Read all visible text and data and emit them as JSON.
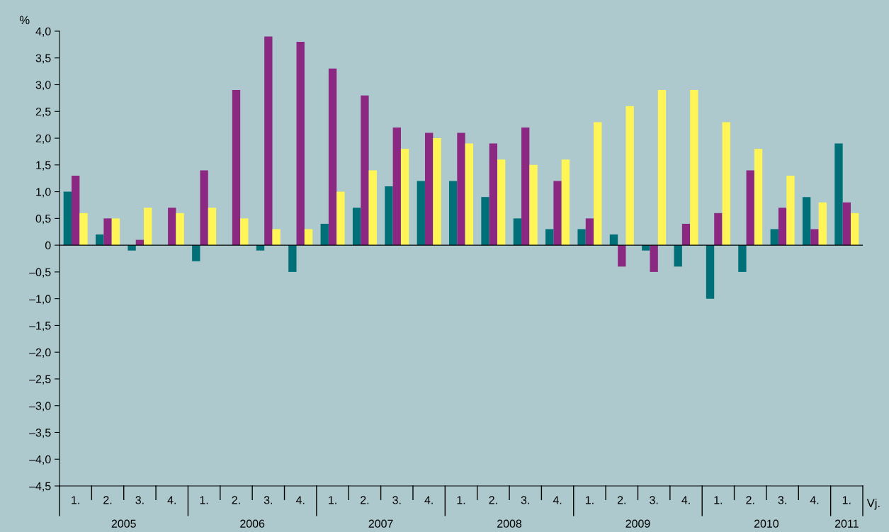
{
  "chart_data": {
    "type": "bar",
    "ylabel": "%",
    "xlabel": "Vj.",
    "categories": [
      "1.",
      "2.",
      "3.",
      "4.",
      "1.",
      "2.",
      "3.",
      "4.",
      "1.",
      "2.",
      "3.",
      "4.",
      "1.",
      "2.",
      "3.",
      "4.",
      "1.",
      "2.",
      "3.",
      "4.",
      "1.",
      "2.",
      "3.",
      "4.",
      "1."
    ],
    "series": [
      {
        "color": "#007078",
        "values": [
          1.0,
          0.2,
          -0.1,
          0,
          -0.3,
          0,
          -0.1,
          -0.5,
          0.4,
          0.7,
          1.1,
          1.2,
          1.2,
          0.9,
          0.5,
          0.3,
          0.3,
          0.2,
          -0.1,
          -0.4,
          -1.0,
          -0.5,
          0.3,
          0.9,
          1.9
        ]
      },
      {
        "color": "#8b2882",
        "values": [
          1.3,
          0.5,
          0.1,
          0.7,
          1.4,
          2.9,
          3.9,
          3.8,
          3.3,
          2.8,
          2.2,
          2.1,
          2.1,
          1.9,
          2.2,
          1.2,
          0.5,
          -0.4,
          -0.5,
          0.4,
          0.6,
          1.4,
          0.7,
          0.3,
          0.8
        ]
      },
      {
        "color": "#fff556",
        "values": [
          0.6,
          0.5,
          0.7,
          0.6,
          0.7,
          0.5,
          0.3,
          0.3,
          1.0,
          1.4,
          1.8,
          2.0,
          1.9,
          1.6,
          1.5,
          1.6,
          2.3,
          2.6,
          2.9,
          2.9,
          2.3,
          1.8,
          1.3,
          0.8,
          0.6
        ]
      }
    ],
    "ylim": [
      -4.5,
      4.0
    ],
    "yticks": [
      {
        "value": -4.5,
        "label": "–4,5"
      },
      {
        "value": -4.0,
        "label": "–4,0"
      },
      {
        "value": -3.5,
        "label": "–3,5"
      },
      {
        "value": -3.0,
        "label": "–3,0"
      },
      {
        "value": -2.5,
        "label": "–2,5"
      },
      {
        "value": -2.0,
        "label": "–2,0"
      },
      {
        "value": -1.5,
        "label": "–1,5"
      },
      {
        "value": -1.0,
        "label": "–1,0"
      },
      {
        "value": -0.5,
        "label": "–0,5"
      },
      {
        "value": 0,
        "label": "0"
      },
      {
        "value": 0.5,
        "label": "0,5"
      },
      {
        "value": 1.0,
        "label": "1,0"
      },
      {
        "value": 1.5,
        "label": "1,5"
      },
      {
        "value": 2.0,
        "label": "2,0"
      },
      {
        "value": 2.5,
        "label": "2,5"
      },
      {
        "value": 3.0,
        "label": "3,0"
      },
      {
        "value": 3.5,
        "label": "3,5"
      },
      {
        "value": 4.0,
        "label": "4,0"
      }
    ],
    "annotations": [
      "2005",
      "2006",
      "2007",
      "2008",
      "2009",
      "2010",
      "2011"
    ],
    "ref_lines": [
      {
        "axis": "y",
        "value": 0,
        "color": "#000000"
      }
    ]
  }
}
